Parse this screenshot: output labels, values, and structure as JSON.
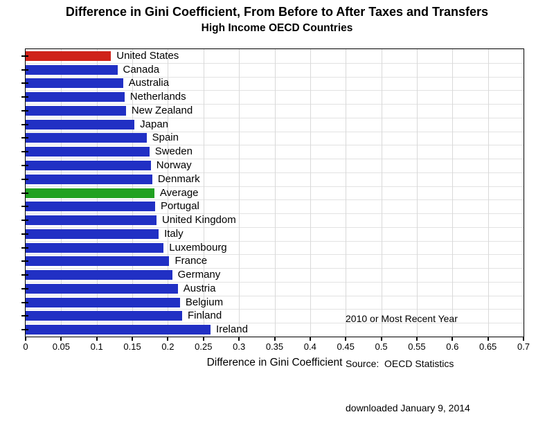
{
  "title": "Difference in Gini Coefficient, From Before to After Taxes and Transfers",
  "subtitle": "High Income OECD Countries",
  "annotation": {
    "lines": [
      "2010 or Most Recent Year",
      "Source:  OECD Statistics",
      "downloaded January 9, 2014"
    ]
  },
  "colors": {
    "blue": "#2130c4",
    "red": "#cf231a",
    "green": "#21a121",
    "gridline_v": "#d9d9d9",
    "gridline_h": "#e2e2e2",
    "frame": "#000000"
  },
  "chart_data": {
    "type": "bar",
    "orientation": "horizontal",
    "title": "Difference in Gini Coefficient, From Before to After Taxes and Transfers",
    "subtitle": "High Income OECD Countries",
    "xlabel": "Difference in Gini Coefficient",
    "ylabel": "",
    "xlim": [
      0,
      0.7
    ],
    "grid": true,
    "xticks": [
      0,
      0.05,
      0.1,
      0.15,
      0.2,
      0.25,
      0.3,
      0.35,
      0.4,
      0.45,
      0.5,
      0.55,
      0.6,
      0.65,
      0.7
    ],
    "xtick_labels": [
      "0",
      "0.05",
      "0.1",
      "0.15",
      "0.2",
      "0.25",
      "0.3",
      "0.35",
      "0.4",
      "0.45",
      "0.5",
      "0.55",
      "0.6",
      "0.65",
      "0.7"
    ],
    "bars": [
      {
        "label": "United States",
        "value": 0.12,
        "color": "red"
      },
      {
        "label": "Canada",
        "value": 0.129,
        "color": "blue"
      },
      {
        "label": "Australia",
        "value": 0.137,
        "color": "blue"
      },
      {
        "label": "Netherlands",
        "value": 0.139,
        "color": "blue"
      },
      {
        "label": "New Zealand",
        "value": 0.141,
        "color": "blue"
      },
      {
        "label": "Japan",
        "value": 0.153,
        "color": "blue"
      },
      {
        "label": "Spain",
        "value": 0.17,
        "color": "blue"
      },
      {
        "label": "Sweden",
        "value": 0.174,
        "color": "blue"
      },
      {
        "label": "Norway",
        "value": 0.176,
        "color": "blue"
      },
      {
        "label": "Denmark",
        "value": 0.178,
        "color": "blue"
      },
      {
        "label": "Average",
        "value": 0.181,
        "color": "green"
      },
      {
        "label": "Portugal",
        "value": 0.182,
        "color": "blue"
      },
      {
        "label": "United Kingdom",
        "value": 0.184,
        "color": "blue"
      },
      {
        "label": "Italy",
        "value": 0.187,
        "color": "blue"
      },
      {
        "label": "Luxembourg",
        "value": 0.194,
        "color": "blue"
      },
      {
        "label": "France",
        "value": 0.202,
        "color": "blue"
      },
      {
        "label": "Germany",
        "value": 0.206,
        "color": "blue"
      },
      {
        "label": "Austria",
        "value": 0.214,
        "color": "blue"
      },
      {
        "label": "Belgium",
        "value": 0.217,
        "color": "blue"
      },
      {
        "label": "Finland",
        "value": 0.22,
        "color": "blue"
      },
      {
        "label": "Ireland",
        "value": 0.26,
        "color": "blue"
      }
    ]
  }
}
